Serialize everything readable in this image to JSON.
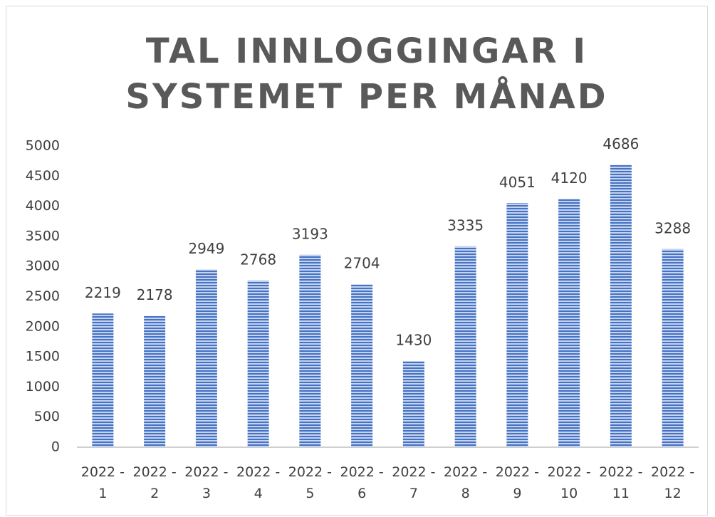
{
  "chart_data": {
    "type": "bar",
    "title": "TAL INNLOGGINGAR I SYSTEMET PER MÅNAD",
    "categories": [
      "2022 - 1",
      "2022 - 2",
      "2022 - 3",
      "2022 - 4",
      "2022 - 5",
      "2022 - 6",
      "2022 - 7",
      "2022 - 8",
      "2022 - 9",
      "2022 - 10",
      "2022 - 11",
      "2022 - 12"
    ],
    "values": [
      2219,
      2178,
      2949,
      2768,
      3193,
      2704,
      1430,
      3335,
      4051,
      4120,
      4686,
      3288
    ],
    "color": "#4472c4",
    "ylim": [
      0,
      5000
    ],
    "yticks": [
      0,
      500,
      1000,
      1500,
      2000,
      2500,
      3000,
      3500,
      4000,
      4500,
      5000
    ],
    "grid": false
  }
}
